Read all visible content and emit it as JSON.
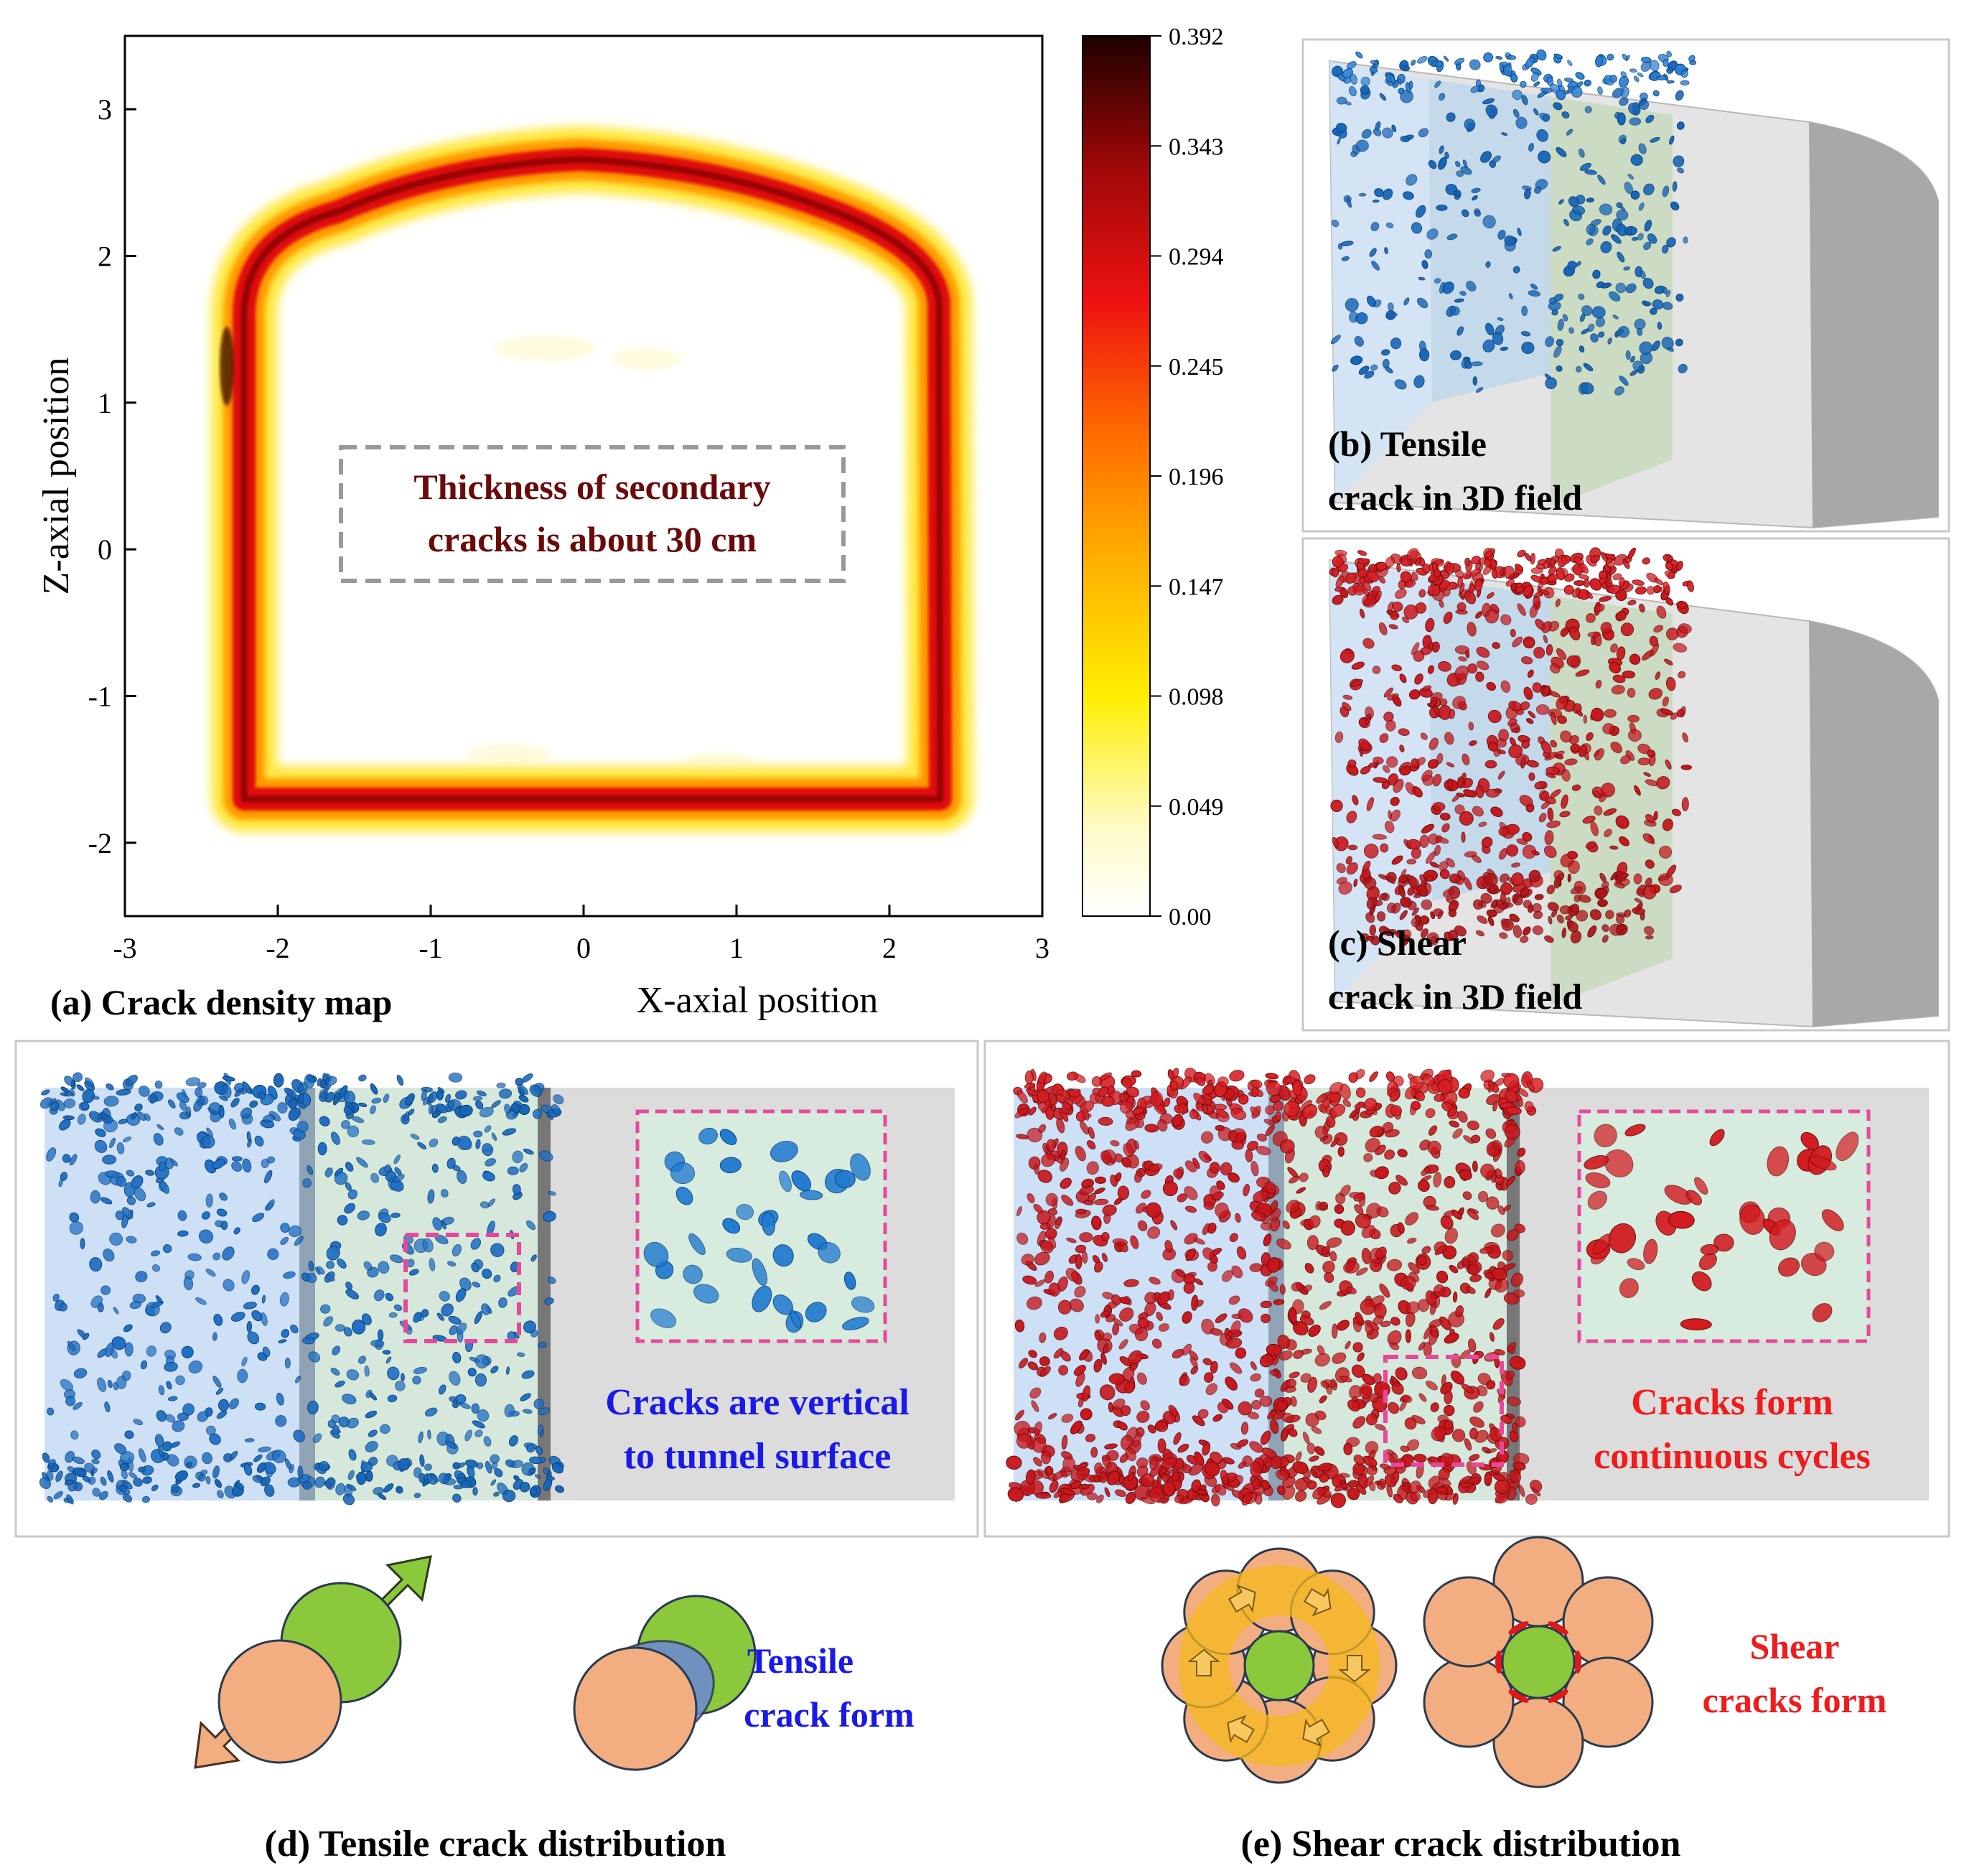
{
  "panel_a": {
    "caption": "(a) Crack density map",
    "xlabel": "X-axial position",
    "ylabel": "Z-axial position",
    "x_ticks": [
      "-3",
      "-2",
      "-1",
      "0",
      "1",
      "2",
      "3"
    ],
    "y_ticks": [
      "3",
      "2",
      "1",
      "0",
      "-1",
      "-2"
    ],
    "annotation_line1": "Thickness of secondary",
    "annotation_line2": "cracks is about 30 cm",
    "colorbar_ticks": [
      "0.392",
      "0.343",
      "0.294",
      "0.245",
      "0.196",
      "0.147",
      "0.098",
      "0.049",
      "0.00"
    ]
  },
  "panel_b": {
    "caption_line1": "(b) Tensile",
    "caption_line2": "crack in 3D field"
  },
  "panel_c": {
    "caption_line1": "(c) Shear",
    "caption_line2": "crack in 3D field"
  },
  "panel_d": {
    "note_line1": "Cracks are vertical",
    "note_line2": "to tunnel surface",
    "schematic_line1": "Tensile",
    "schematic_line2": "crack form",
    "caption": "(d) Tensile crack distribution"
  },
  "panel_e": {
    "note_line1": "Cracks form",
    "note_line2": "continuous cycles",
    "schematic_line1": "Shear",
    "schematic_line2": "cracks form",
    "caption": "(e) Shear crack distribution"
  },
  "colors": {
    "tensile": "#1565b8",
    "shear": "#c8161b",
    "note_blue": "#1a1ae6",
    "note_red": "#ee1c1c",
    "annotation": "#6b0a0a"
  },
  "chart_data": {
    "type": "heatmap",
    "title": "Crack density map",
    "xlabel": "X-axial position",
    "ylabel": "Z-axial position",
    "xlim": [
      -3,
      3
    ],
    "ylim": [
      -2.5,
      3.5
    ],
    "colorbar_range": [
      0.0,
      0.392
    ],
    "colorbar_ticks": [
      0.0,
      0.049,
      0.098,
      0.147,
      0.196,
      0.245,
      0.294,
      0.343,
      0.392
    ],
    "ring_outline": [
      [
        -2.35,
        -1.68
      ],
      [
        2.35,
        -1.68
      ],
      [
        2.38,
        1.9
      ],
      [
        1.8,
        2.35
      ],
      [
        0,
        2.62
      ],
      [
        -1.8,
        2.4
      ],
      [
        -2.35,
        2.0
      ],
      [
        -2.35,
        -1.68
      ]
    ],
    "peak_density": 0.392
  }
}
